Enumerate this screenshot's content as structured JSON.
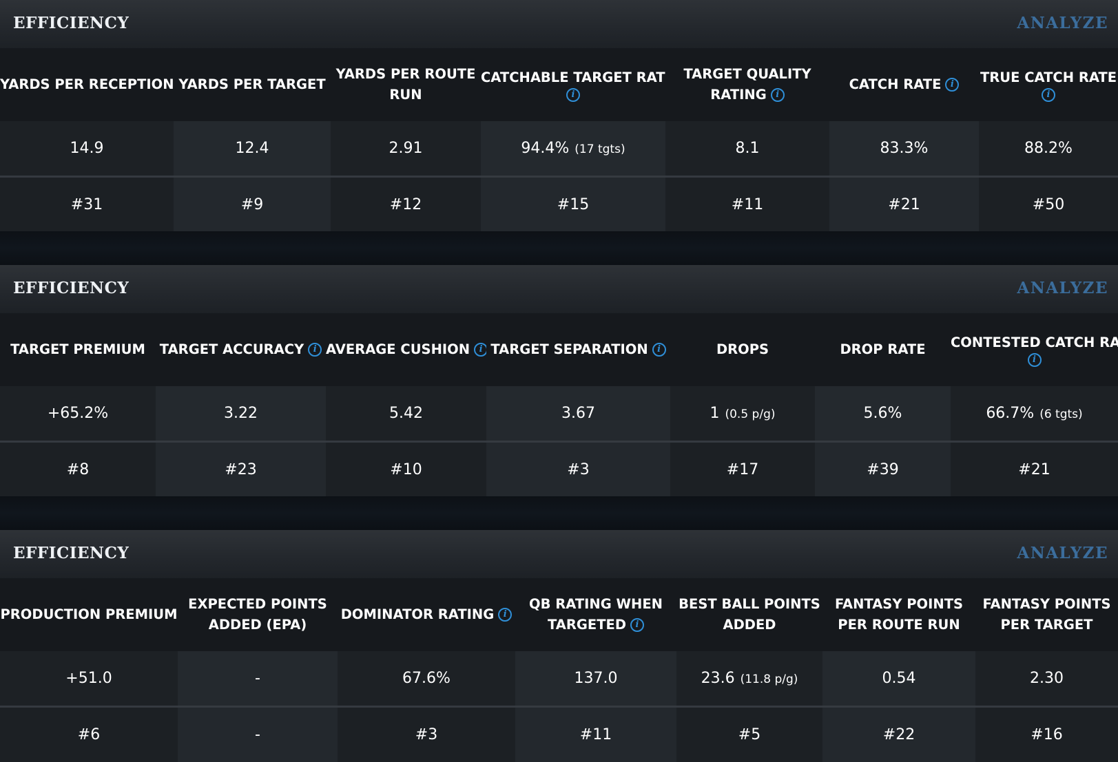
{
  "sections": [
    {
      "title": "EFFICIENCY",
      "analyze_label": "ANALYZE",
      "columns": [
        {
          "line1": "YARDS PER RECEPTION",
          "line2": ""
        },
        {
          "line1": "YARDS PER TARGET",
          "line2": ""
        },
        {
          "line1": "YARDS PER ROUTE",
          "line2": "RUN"
        },
        {
          "line1": "CATCHABLE TARGET RATE",
          "line2": ""
        },
        {
          "line1": "TARGET QUALITY",
          "line2": "RATING"
        },
        {
          "line1": "CATCH RATE",
          "line2": ""
        },
        {
          "line1": "TRUE CATCH RATE",
          "line2": ""
        }
      ],
      "values": [
        {
          "main": "14.9",
          "sub": ""
        },
        {
          "main": "12.4",
          "sub": ""
        },
        {
          "main": "2.91",
          "sub": ""
        },
        {
          "main": "94.4%",
          "sub": "(17 tgts)"
        },
        {
          "main": "8.1",
          "sub": ""
        },
        {
          "main": "83.3%",
          "sub": ""
        },
        {
          "main": "88.2%",
          "sub": ""
        }
      ],
      "ranks": [
        "#31",
        "#9",
        "#12",
        "#15",
        "#11",
        "#21",
        "#50"
      ]
    },
    {
      "title": "EFFICIENCY",
      "analyze_label": "ANALYZE",
      "columns": [
        {
          "line1": "TARGET PREMIUM",
          "line2": ""
        },
        {
          "line1": "TARGET ACCURACY",
          "line2": ""
        },
        {
          "line1": "AVERAGE CUSHION",
          "line2": ""
        },
        {
          "line1": "TARGET SEPARATION",
          "line2": ""
        },
        {
          "line1": "DROPS",
          "line2": ""
        },
        {
          "line1": "DROP RATE",
          "line2": ""
        },
        {
          "line1": "CONTESTED CATCH RATE",
          "line2": ""
        }
      ],
      "values": [
        {
          "main": "+65.2%",
          "sub": ""
        },
        {
          "main": "3.22",
          "sub": ""
        },
        {
          "main": "5.42",
          "sub": ""
        },
        {
          "main": "3.67",
          "sub": ""
        },
        {
          "main": "1",
          "sub": "(0.5 p/g)"
        },
        {
          "main": "5.6%",
          "sub": ""
        },
        {
          "main": "66.7%",
          "sub": "(6 tgts)"
        }
      ],
      "ranks": [
        "#8",
        "#23",
        "#10",
        "#3",
        "#17",
        "#39",
        "#21"
      ]
    },
    {
      "title": "EFFICIENCY",
      "analyze_label": "ANALYZE",
      "columns": [
        {
          "line1": "PRODUCTION PREMIUM",
          "line2": ""
        },
        {
          "line1": "EXPECTED POINTS",
          "line2": "ADDED (EPA)"
        },
        {
          "line1": "DOMINATOR RATING",
          "line2": ""
        },
        {
          "line1": "QB RATING WHEN",
          "line2": "TARGETED"
        },
        {
          "line1": "BEST BALL POINTS",
          "line2": "ADDED"
        },
        {
          "line1": "FANTASY POINTS",
          "line2": "PER ROUTE RUN"
        },
        {
          "line1": "FANTASY POINTS",
          "line2": "PER TARGET"
        }
      ],
      "values": [
        {
          "main": "+51.0",
          "sub": ""
        },
        {
          "main": "-",
          "sub": ""
        },
        {
          "main": "67.6%",
          "sub": ""
        },
        {
          "main": "137.0",
          "sub": ""
        },
        {
          "main": "23.6",
          "sub": "(11.8 p/g)"
        },
        {
          "main": "0.54",
          "sub": ""
        },
        {
          "main": "2.30",
          "sub": ""
        }
      ],
      "ranks": [
        "#6",
        "-",
        "#3",
        "#11",
        "#5",
        "#22",
        "#16"
      ]
    }
  ],
  "info_icon": {
    "name": "info-icon",
    "glyph": "i",
    "color": "#2f8fd8"
  },
  "colors": {
    "background": "#0b0f15",
    "header_bar": "#2a2e33",
    "analyze_link": "#3b6d9c",
    "column_header": "#16191d",
    "text": "#ffffff"
  }
}
